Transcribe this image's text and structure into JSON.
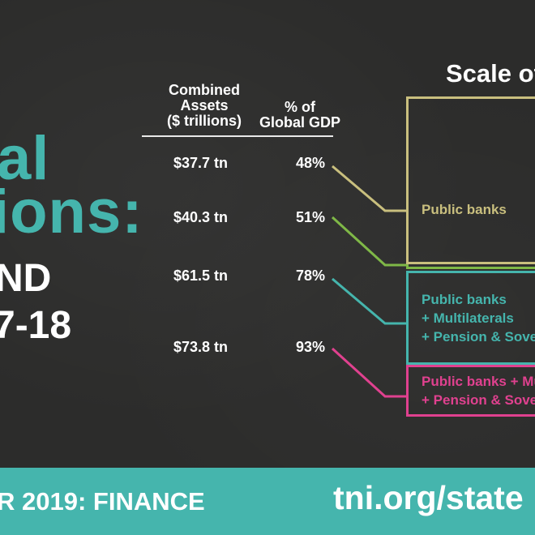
{
  "headline": {
    "line1": "al",
    "line2": "ions:",
    "line3": "ND",
    "line4": "7-18"
  },
  "table": {
    "col_assets_header": [
      "Combined",
      "Assets",
      "($ trillions)"
    ],
    "col_gdp_header": [
      "% of",
      "Global GDP"
    ],
    "rows": [
      {
        "assets": "$37.7 tn",
        "gdp": "48%"
      },
      {
        "assets": "$40.3 tn",
        "gdp": "51%"
      },
      {
        "assets": "$61.5 tn",
        "gdp": "78%"
      },
      {
        "assets": "$73.8 tn",
        "gdp": "93%"
      }
    ]
  },
  "scale": {
    "title": "Scale of",
    "boxes": [
      {
        "lines": [
          "Public banks"
        ],
        "color": "#c9bf7e"
      },
      {
        "lines": [],
        "color": "#7fb847"
      },
      {
        "lines": [
          "Public banks",
          "+ Multilaterals",
          "+ Pension & Sove"
        ],
        "color": "#45b5ad"
      },
      {
        "lines": [
          "Public banks + Mu",
          "+ Pension & Sove"
        ],
        "color": "#e0418f"
      }
    ]
  },
  "footer": {
    "left": "R 2019: FINANCE",
    "right": "tni.org/state"
  },
  "colors": {
    "teal": "#45b5ad",
    "khaki": "#c9bf7e",
    "green": "#7fb847",
    "magenta": "#e0418f",
    "background": "#2c2c2b"
  }
}
